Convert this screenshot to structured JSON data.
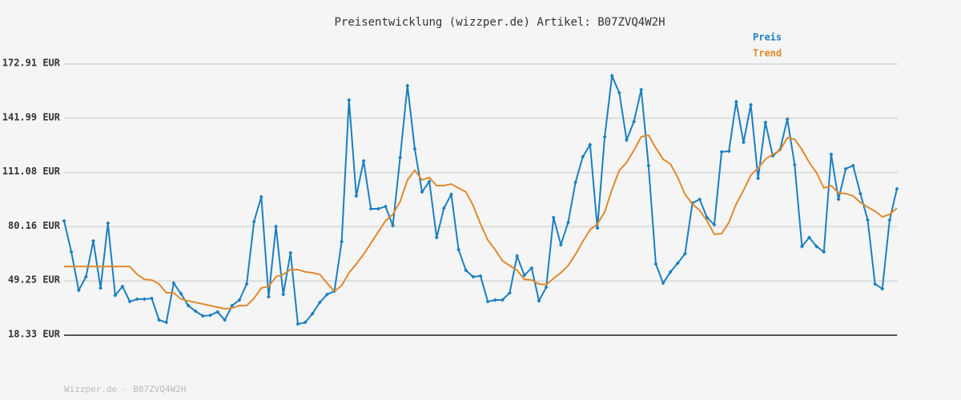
{
  "chart_data": {
    "type": "line",
    "title": "Preisentwicklung (wizzper.de) Artikel: B07ZVQ4W2H",
    "footer": "Wizzper.de - B07ZVQ4W2H",
    "categories": [
      null,
      null,
      null,
      null,
      null,
      null,
      null,
      null,
      null,
      null,
      null,
      null,
      null,
      null,
      null,
      null,
      null,
      null,
      null,
      null,
      null,
      null,
      null,
      null,
      null,
      null,
      null,
      null,
      null,
      null,
      null,
      null,
      null,
      null,
      null,
      null,
      null,
      null,
      null,
      null,
      null,
      null,
      null,
      null,
      null,
      null,
      null,
      null,
      null,
      null,
      null,
      null,
      null,
      null,
      null,
      null,
      null,
      null,
      null,
      null,
      null,
      null,
      null,
      null,
      null,
      null,
      null,
      null,
      null,
      null,
      null,
      null,
      null,
      null,
      null,
      null,
      null,
      null,
      null,
      null,
      null,
      null,
      null,
      null,
      null,
      null,
      null,
      null,
      null,
      null,
      null,
      null,
      null,
      null,
      null,
      null,
      null,
      null,
      null,
      null,
      null,
      null,
      null,
      null,
      null,
      null,
      null,
      null,
      null,
      null,
      null,
      null,
      null,
      null,
      null
    ],
    "series": [
      {
        "name": "Preis",
        "color": "#1a7fc1",
        "markers": true,
        "values": [
          83.5,
          65.8,
          43.9,
          51.6,
          72.1,
          45.2,
          82.2,
          41.1,
          46.1,
          37.5,
          38.9,
          38.9,
          39.3,
          27.0,
          25.6,
          48.0,
          42.0,
          35.2,
          32.0,
          29.3,
          29.7,
          31.6,
          27.0,
          35.2,
          38.4,
          47.5,
          83.1,
          97.2,
          40.2,
          80.3,
          41.6,
          65.3,
          24.7,
          25.6,
          30.6,
          37.0,
          41.6,
          43.4,
          71.7,
          152.4,
          97.7,
          117.7,
          90.4,
          90.4,
          91.7,
          80.8,
          119.6,
          160.6,
          124.6,
          100.0,
          105.9,
          74.0,
          90.8,
          98.6,
          67.1,
          55.3,
          51.6,
          52.1,
          37.5,
          38.4,
          38.4,
          42.5,
          63.5,
          52.5,
          56.6,
          37.9,
          45.7,
          85.4,
          69.9,
          82.6,
          105.4,
          120.0,
          126.9,
          79.4,
          131.4,
          166.1,
          156.5,
          129.6,
          140.1,
          158.3,
          115.0,
          58.9,
          48.0,
          54.4,
          59.4,
          64.8,
          93.6,
          95.8,
          85.4,
          81.3,
          122.8,
          123.2,
          151.5,
          128.2,
          149.7,
          107.7,
          139.6,
          120.5,
          124.1,
          141.5,
          115.5,
          68.9,
          74.0,
          68.9,
          65.8,
          121.4,
          95.8,
          113.2,
          115.0,
          99.0,
          84.0,
          47.5,
          44.8,
          84.0,
          101.8
        ]
      },
      {
        "name": "Trend",
        "color": "#e08a2c",
        "markers": false,
        "values": [
          57.5,
          57.5,
          57.5,
          57.5,
          57.5,
          57.5,
          57.5,
          57.5,
          57.5,
          57.5,
          53.0,
          50.2,
          49.8,
          47.5,
          42.5,
          42.5,
          38.9,
          37.9,
          37.0,
          36.1,
          35.2,
          34.3,
          33.4,
          33.8,
          35.2,
          35.2,
          39.3,
          45.2,
          46.1,
          51.6,
          53.0,
          55.7,
          55.7,
          54.4,
          53.9,
          53.0,
          48.0,
          43.4,
          46.6,
          53.9,
          58.9,
          64.4,
          70.8,
          77.2,
          83.5,
          87.2,
          94.5,
          106.8,
          112.3,
          106.8,
          108.2,
          103.6,
          103.6,
          104.5,
          102.2,
          100.0,
          92.2,
          81.7,
          72.6,
          67.1,
          60.7,
          58.0,
          55.3,
          50.2,
          49.8,
          47.5,
          47.1,
          50.7,
          53.9,
          58.0,
          64.4,
          71.7,
          78.5,
          81.7,
          88.6,
          101.3,
          112.3,
          116.8,
          123.7,
          131.4,
          132.3,
          125.0,
          118.6,
          115.9,
          108.2,
          98.6,
          93.1,
          89.5,
          83.5,
          75.8,
          76.2,
          82.6,
          93.1,
          100.9,
          109.5,
          113.6,
          118.6,
          121.4,
          123.7,
          130.9,
          130.0,
          124.1,
          116.8,
          110.9,
          102.2,
          103.6,
          99.5,
          99.0,
          97.7,
          94.0,
          91.3,
          89.0,
          85.8,
          87.2,
          90.8
        ]
      }
    ],
    "ylim": [
      18.33,
      172.91
    ],
    "yticks": [
      {
        "value": 18.33,
        "label": "18.33 EUR"
      },
      {
        "value": 49.25,
        "label": "49.25 EUR"
      },
      {
        "value": 80.16,
        "label": "80.16 EUR"
      },
      {
        "value": 111.08,
        "label": "111.08 EUR"
      },
      {
        "value": 141.99,
        "label": "141.99 EUR"
      },
      {
        "value": 172.91,
        "label": "172.91 EUR"
      }
    ],
    "grid": true
  }
}
